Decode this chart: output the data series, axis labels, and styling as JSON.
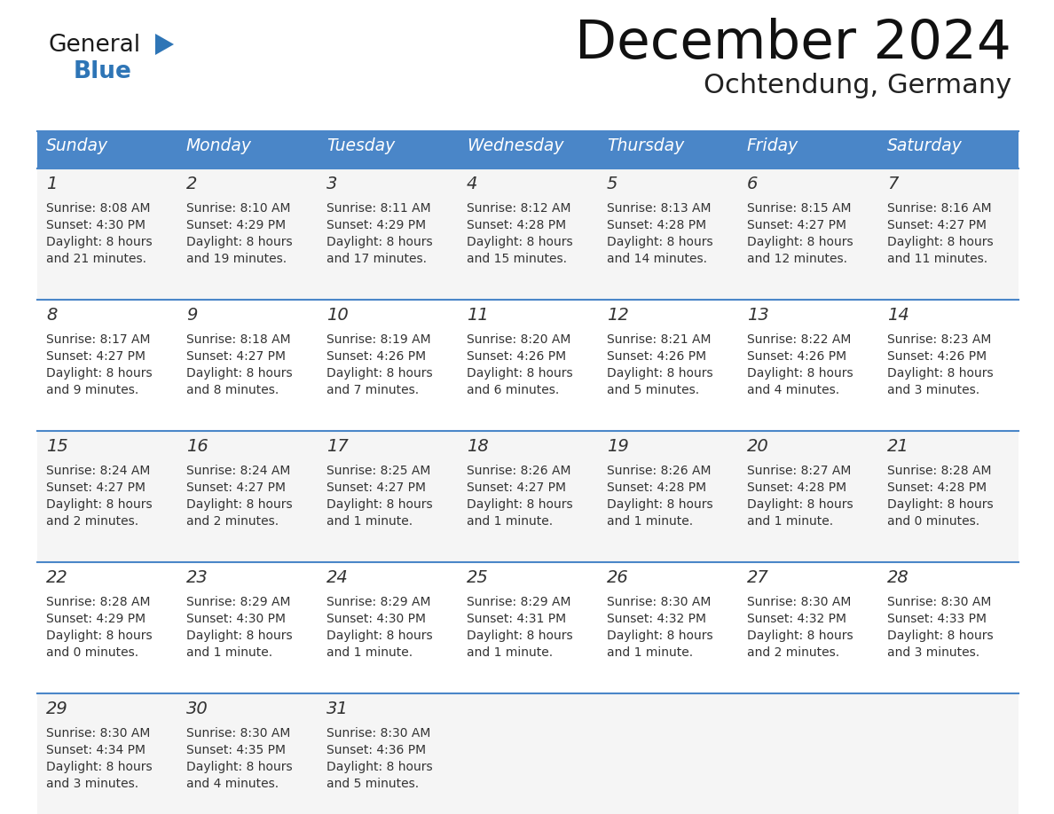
{
  "title": "December 2024",
  "subtitle": "Ochtendung, Germany",
  "header_color": "#4a86c8",
  "header_text_color": "#ffffff",
  "cell_bg_odd": "#f5f5f5",
  "cell_bg_even": "#ffffff",
  "border_color": "#4a86c8",
  "text_color": "#333333",
  "days_of_week": [
    "Sunday",
    "Monday",
    "Tuesday",
    "Wednesday",
    "Thursday",
    "Friday",
    "Saturday"
  ],
  "weeks": [
    [
      {
        "day": "1",
        "sunrise": "8:08 AM",
        "sunset": "4:30 PM",
        "daylight_line1": "Daylight: 8 hours",
        "daylight_line2": "and 21 minutes."
      },
      {
        "day": "2",
        "sunrise": "8:10 AM",
        "sunset": "4:29 PM",
        "daylight_line1": "Daylight: 8 hours",
        "daylight_line2": "and 19 minutes."
      },
      {
        "day": "3",
        "sunrise": "8:11 AM",
        "sunset": "4:29 PM",
        "daylight_line1": "Daylight: 8 hours",
        "daylight_line2": "and 17 minutes."
      },
      {
        "day": "4",
        "sunrise": "8:12 AM",
        "sunset": "4:28 PM",
        "daylight_line1": "Daylight: 8 hours",
        "daylight_line2": "and 15 minutes."
      },
      {
        "day": "5",
        "sunrise": "8:13 AM",
        "sunset": "4:28 PM",
        "daylight_line1": "Daylight: 8 hours",
        "daylight_line2": "and 14 minutes."
      },
      {
        "day": "6",
        "sunrise": "8:15 AM",
        "sunset": "4:27 PM",
        "daylight_line1": "Daylight: 8 hours",
        "daylight_line2": "and 12 minutes."
      },
      {
        "day": "7",
        "sunrise": "8:16 AM",
        "sunset": "4:27 PM",
        "daylight_line1": "Daylight: 8 hours",
        "daylight_line2": "and 11 minutes."
      }
    ],
    [
      {
        "day": "8",
        "sunrise": "8:17 AM",
        "sunset": "4:27 PM",
        "daylight_line1": "Daylight: 8 hours",
        "daylight_line2": "and 9 minutes."
      },
      {
        "day": "9",
        "sunrise": "8:18 AM",
        "sunset": "4:27 PM",
        "daylight_line1": "Daylight: 8 hours",
        "daylight_line2": "and 8 minutes."
      },
      {
        "day": "10",
        "sunrise": "8:19 AM",
        "sunset": "4:26 PM",
        "daylight_line1": "Daylight: 8 hours",
        "daylight_line2": "and 7 minutes."
      },
      {
        "day": "11",
        "sunrise": "8:20 AM",
        "sunset": "4:26 PM",
        "daylight_line1": "Daylight: 8 hours",
        "daylight_line2": "and 6 minutes."
      },
      {
        "day": "12",
        "sunrise": "8:21 AM",
        "sunset": "4:26 PM",
        "daylight_line1": "Daylight: 8 hours",
        "daylight_line2": "and 5 minutes."
      },
      {
        "day": "13",
        "sunrise": "8:22 AM",
        "sunset": "4:26 PM",
        "daylight_line1": "Daylight: 8 hours",
        "daylight_line2": "and 4 minutes."
      },
      {
        "day": "14",
        "sunrise": "8:23 AM",
        "sunset": "4:26 PM",
        "daylight_line1": "Daylight: 8 hours",
        "daylight_line2": "and 3 minutes."
      }
    ],
    [
      {
        "day": "15",
        "sunrise": "8:24 AM",
        "sunset": "4:27 PM",
        "daylight_line1": "Daylight: 8 hours",
        "daylight_line2": "and 2 minutes."
      },
      {
        "day": "16",
        "sunrise": "8:24 AM",
        "sunset": "4:27 PM",
        "daylight_line1": "Daylight: 8 hours",
        "daylight_line2": "and 2 minutes."
      },
      {
        "day": "17",
        "sunrise": "8:25 AM",
        "sunset": "4:27 PM",
        "daylight_line1": "Daylight: 8 hours",
        "daylight_line2": "and 1 minute."
      },
      {
        "day": "18",
        "sunrise": "8:26 AM",
        "sunset": "4:27 PM",
        "daylight_line1": "Daylight: 8 hours",
        "daylight_line2": "and 1 minute."
      },
      {
        "day": "19",
        "sunrise": "8:26 AM",
        "sunset": "4:28 PM",
        "daylight_line1": "Daylight: 8 hours",
        "daylight_line2": "and 1 minute."
      },
      {
        "day": "20",
        "sunrise": "8:27 AM",
        "sunset": "4:28 PM",
        "daylight_line1": "Daylight: 8 hours",
        "daylight_line2": "and 1 minute."
      },
      {
        "day": "21",
        "sunrise": "8:28 AM",
        "sunset": "4:28 PM",
        "daylight_line1": "Daylight: 8 hours",
        "daylight_line2": "and 0 minutes."
      }
    ],
    [
      {
        "day": "22",
        "sunrise": "8:28 AM",
        "sunset": "4:29 PM",
        "daylight_line1": "Daylight: 8 hours",
        "daylight_line2": "and 0 minutes."
      },
      {
        "day": "23",
        "sunrise": "8:29 AM",
        "sunset": "4:30 PM",
        "daylight_line1": "Daylight: 8 hours",
        "daylight_line2": "and 1 minute."
      },
      {
        "day": "24",
        "sunrise": "8:29 AM",
        "sunset": "4:30 PM",
        "daylight_line1": "Daylight: 8 hours",
        "daylight_line2": "and 1 minute."
      },
      {
        "day": "25",
        "sunrise": "8:29 AM",
        "sunset": "4:31 PM",
        "daylight_line1": "Daylight: 8 hours",
        "daylight_line2": "and 1 minute."
      },
      {
        "day": "26",
        "sunrise": "8:30 AM",
        "sunset": "4:32 PM",
        "daylight_line1": "Daylight: 8 hours",
        "daylight_line2": "and 1 minute."
      },
      {
        "day": "27",
        "sunrise": "8:30 AM",
        "sunset": "4:32 PM",
        "daylight_line1": "Daylight: 8 hours",
        "daylight_line2": "and 2 minutes."
      },
      {
        "day": "28",
        "sunrise": "8:30 AM",
        "sunset": "4:33 PM",
        "daylight_line1": "Daylight: 8 hours",
        "daylight_line2": "and 3 minutes."
      }
    ],
    [
      {
        "day": "29",
        "sunrise": "8:30 AM",
        "sunset": "4:34 PM",
        "daylight_line1": "Daylight: 8 hours",
        "daylight_line2": "and 3 minutes."
      },
      {
        "day": "30",
        "sunrise": "8:30 AM",
        "sunset": "4:35 PM",
        "daylight_line1": "Daylight: 8 hours",
        "daylight_line2": "and 4 minutes."
      },
      {
        "day": "31",
        "sunrise": "8:30 AM",
        "sunset": "4:36 PM",
        "daylight_line1": "Daylight: 8 hours",
        "daylight_line2": "and 5 minutes."
      },
      null,
      null,
      null,
      null
    ]
  ],
  "logo_general_color": "#1a1a1a",
  "logo_blue_color": "#2e75b6",
  "logo_triangle_color": "#2e75b6"
}
